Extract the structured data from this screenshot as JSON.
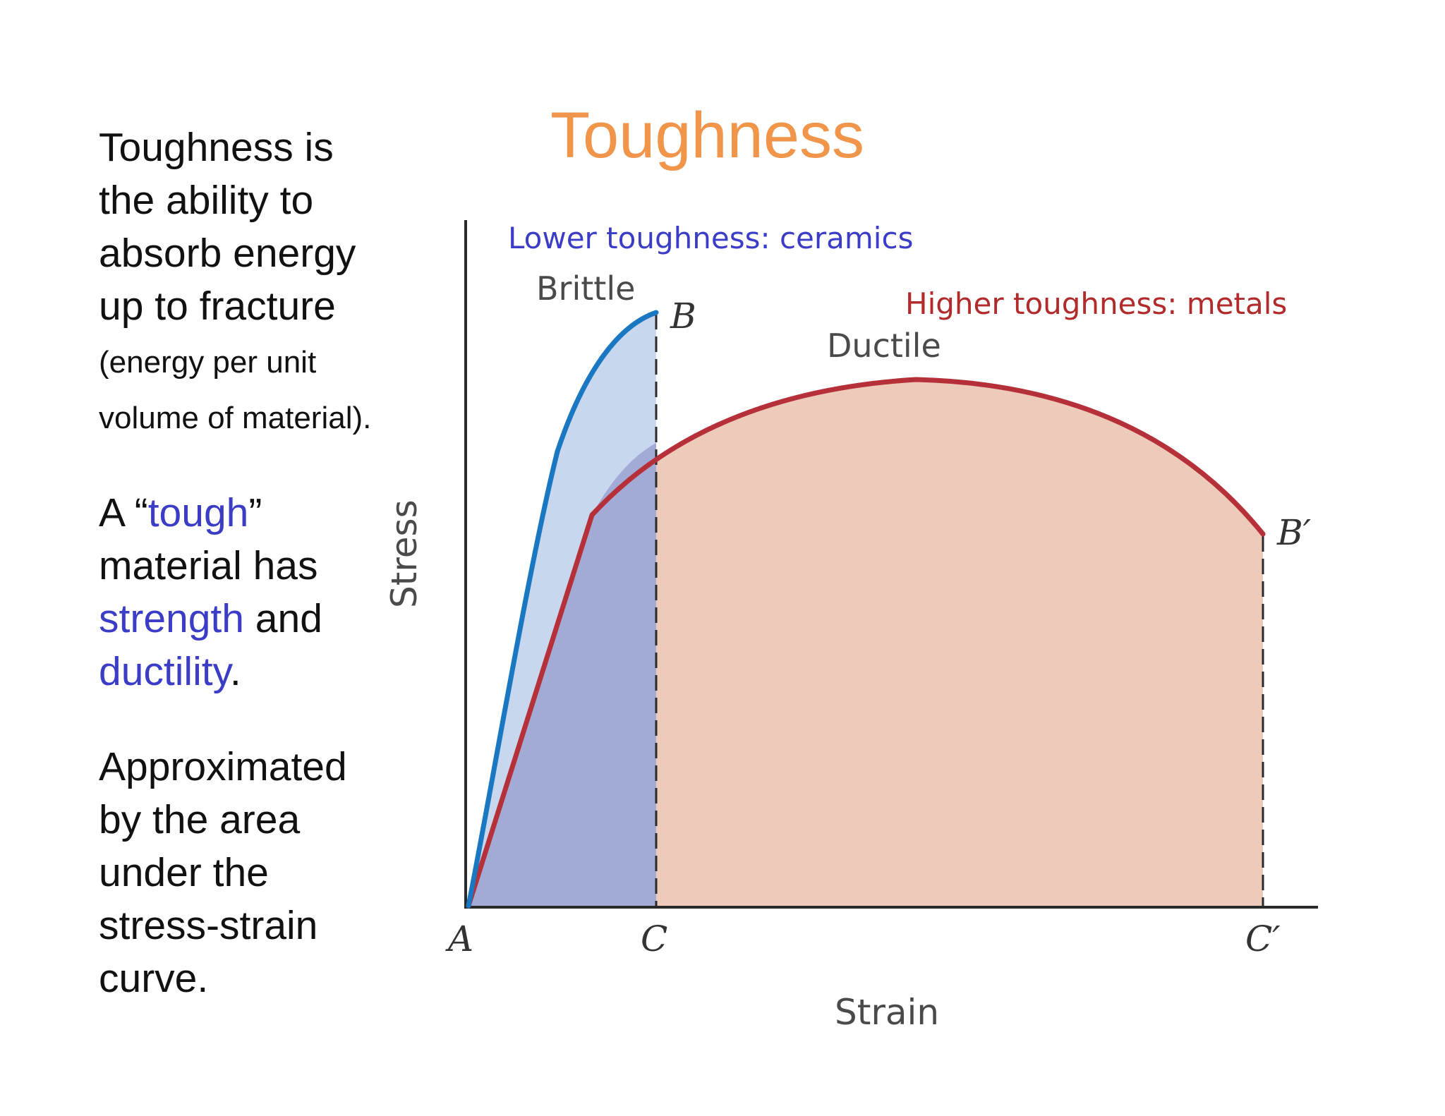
{
  "title": "Toughness",
  "left_text": {
    "p1_main": "Toughness is the ability to absorb energy up to fracture",
    "p1_small": "(energy per unit volume of material).",
    "p2_a": "A “",
    "p2_tough": "tough",
    "p2_b": "” material has ",
    "p2_strength": "strength",
    "p2_c": " and ",
    "p2_ductility": "ductility",
    "p2_d": ".",
    "p3": "Approximated by the area under the stress-strain curve."
  },
  "diagram": {
    "annotation_lower": "Lower toughness: ceramics",
    "annotation_higher": "Higher toughness: metals",
    "curve_brittle_label": "Brittle",
    "curve_ductile_label": "Ductile",
    "point_A": "A",
    "point_B": "B",
    "point_B_prime": "B′",
    "point_C": "C",
    "point_C_prime": "C′",
    "axis_x_label": "Strain",
    "axis_y_label": "Stress",
    "colors": {
      "brittle_curve": "#1a78c2",
      "brittle_fill": "#c8d6ee",
      "overlap_fill": "#a2abd5",
      "ductile_curve": "#b6303a",
      "ductile_fill": "#eecabb",
      "annotation_lower": "#3b3dc6",
      "annotation_higher": "#b22a2a"
    }
  }
}
